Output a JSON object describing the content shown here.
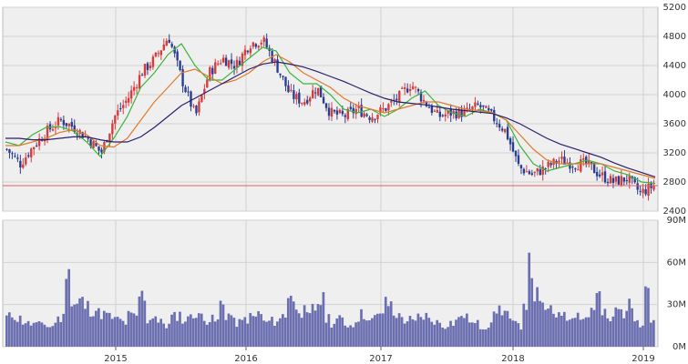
{
  "chart_data": [
    {
      "type": "candlestick",
      "title": "",
      "ylim": [
        2400,
        5200
      ],
      "y_ticks": [
        "2400",
        "2800",
        "3200",
        "3600",
        "4000",
        "4400",
        "4800",
        "5200"
      ],
      "x_ticks": [
        "2015",
        "2016",
        "2017",
        "2018",
        "2019"
      ],
      "x_range": [
        "2014-03",
        "2019-02"
      ],
      "grid": true,
      "candle_colors": {
        "up": "#d83b3b",
        "down": "#2b3d8f"
      },
      "reference_line": {
        "value": 2750,
        "color": "#e06060"
      },
      "moving_averages": [
        {
          "color": "#3cb43c",
          "values": [
            3350,
            3300,
            3450,
            3550,
            3560,
            3500,
            3350,
            3150,
            3400,
            3700,
            4100,
            4300,
            4550,
            4700,
            4400,
            4200,
            4200,
            4350,
            4500,
            4650,
            4600,
            4300,
            4150,
            4150,
            4000,
            3800,
            3750,
            3800,
            3700,
            3800,
            3950,
            4050,
            3850,
            3750,
            3700,
            3800,
            3750,
            3650,
            3300,
            3050,
            2950,
            3000,
            3050,
            3100,
            3050,
            2950,
            2900,
            2800,
            2780
          ]
        },
        {
          "color": "#e07a2a",
          "values": [
            3300,
            3300,
            3350,
            3400,
            3480,
            3520,
            3450,
            3300,
            3280,
            3400,
            3650,
            3900,
            4100,
            4300,
            4350,
            4250,
            4150,
            4200,
            4300,
            4450,
            4550,
            4450,
            4300,
            4200,
            4100,
            3950,
            3850,
            3800,
            3750,
            3800,
            3850,
            3900,
            3900,
            3850,
            3800,
            3780,
            3750,
            3650,
            3450,
            3250,
            3100,
            3050,
            3050,
            3050,
            3050,
            3000,
            2950,
            2900,
            2850
          ]
        },
        {
          "color": "#2a1f6e",
          "values": [
            3400,
            3400,
            3380,
            3380,
            3400,
            3420,
            3420,
            3380,
            3350,
            3350,
            3420,
            3550,
            3700,
            3850,
            3950,
            4050,
            4150,
            4250,
            4350,
            4420,
            4450,
            4420,
            4380,
            4320,
            4250,
            4180,
            4100,
            4020,
            3950,
            3900,
            3880,
            3860,
            3830,
            3800,
            3780,
            3760,
            3740,
            3680,
            3600,
            3500,
            3400,
            3320,
            3260,
            3200,
            3140,
            3060,
            2990,
            2930,
            2870
          ]
        }
      ],
      "close_series": [
        3250,
        3050,
        3300,
        3500,
        3650,
        3550,
        3400,
        3200,
        3700,
        3950,
        4300,
        4500,
        4800,
        4200,
        3700,
        4300,
        4500,
        4400,
        4700,
        4750,
        4400,
        4000,
        3900,
        4100,
        3750,
        3700,
        3800,
        3700,
        3800,
        3950,
        4150,
        3900,
        3700,
        3750,
        3750,
        3850,
        3700,
        3500,
        3000,
        2900,
        3000,
        3100,
        3050,
        3050,
        2900,
        2800,
        2850,
        2650,
        2750
      ]
    },
    {
      "type": "bar",
      "title": "",
      "ylim": [
        0,
        90
      ],
      "y_ticks": [
        "0M",
        "30M",
        "60M",
        "90M"
      ],
      "x_ticks": [
        "2015",
        "2016",
        "2017",
        "2018",
        "2019"
      ],
      "bar_color": "#6b6fb0",
      "values": [
        22,
        24,
        21,
        19,
        17,
        16,
        18,
        15,
        20,
        22,
        63,
        31,
        34,
        30,
        28,
        25,
        24,
        22,
        20,
        18,
        23,
        22,
        38,
        20,
        24,
        18,
        16,
        22,
        24,
        20,
        26,
        22,
        24,
        20,
        19,
        32,
        24,
        18,
        18,
        21,
        22,
        25,
        18,
        19,
        20,
        24,
        40,
        31,
        26,
        22,
        28,
        34,
        22,
        18,
        20,
        17,
        16,
        22,
        24,
        19,
        22,
        26,
        32,
        25,
        22,
        20,
        18,
        22,
        23,
        20,
        18,
        16,
        18,
        20,
        24,
        21,
        17,
        15,
        16,
        22,
        28,
        26,
        18,
        16,
        34,
        59,
        38,
        30,
        26,
        24,
        28,
        22,
        26,
        24,
        22,
        30,
        38,
        24,
        20,
        28,
        26,
        30,
        24,
        18,
        46,
        20
      ]
    }
  ]
}
